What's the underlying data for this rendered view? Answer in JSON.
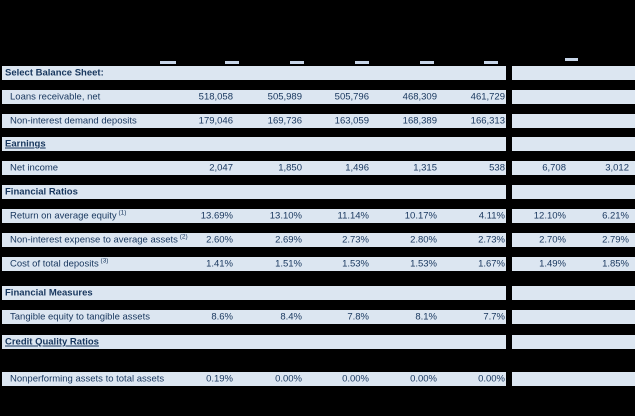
{
  "table": {
    "colors": {
      "background": "#000000",
      "row_fill": "#dce6f1",
      "text": "#17365d"
    },
    "rows": [
      {
        "label": "Select Balance Sheet:",
        "sup": "",
        "type": "section",
        "underline": false,
        "values": [
          "",
          "",
          "",
          "",
          ""
        ],
        "extra": [
          "",
          ""
        ]
      },
      {
        "label": "Loans receivable, net",
        "sup": "",
        "type": "data",
        "underline": false,
        "values": [
          "518,058",
          "505,989",
          "505,796",
          "468,309",
          "461,729"
        ],
        "extra": [
          "",
          ""
        ]
      },
      {
        "label": "Non-interest demand deposits",
        "sup": "",
        "type": "data",
        "underline": false,
        "values": [
          "179,046",
          "169,736",
          "163,059",
          "168,389",
          "166,313"
        ],
        "extra": [
          "",
          ""
        ]
      },
      {
        "label": "Earnings",
        "sup": "",
        "type": "section",
        "underline": true,
        "values": [
          "",
          "",
          "",
          "",
          ""
        ],
        "extra": [
          "",
          ""
        ]
      },
      {
        "label": "Net income",
        "sup": "",
        "type": "data",
        "underline": false,
        "values": [
          "2,047",
          "1,850",
          "1,496",
          "1,315",
          "538"
        ],
        "extra": [
          "6,708",
          "3,012"
        ]
      },
      {
        "label": "Financial Ratios",
        "sup": "",
        "type": "section",
        "underline": false,
        "values": [
          "",
          "",
          "",
          "",
          ""
        ],
        "extra": [
          "",
          ""
        ]
      },
      {
        "label": "Return on average equity",
        "sup": "(1)",
        "type": "data",
        "underline": false,
        "values": [
          "13.69%",
          "13.10%",
          "11.14%",
          "10.17%",
          "4.11%"
        ],
        "extra": [
          "12.10%",
          "6.21%"
        ]
      },
      {
        "label": "Non-interest expense to average assets",
        "sup": "(2)",
        "type": "data",
        "underline": false,
        "values": [
          "2.60%",
          "2.69%",
          "2.73%",
          "2.80%",
          "2.73%"
        ],
        "extra": [
          "2.70%",
          "2.79%"
        ]
      },
      {
        "label": "Cost of total deposits",
        "sup": "(3)",
        "type": "data",
        "underline": false,
        "values": [
          "1.41%",
          "1.51%",
          "1.53%",
          "1.53%",
          "1.67%"
        ],
        "extra": [
          "1.49%",
          "1.85%"
        ]
      },
      {
        "label": "Financial Measures",
        "sup": "",
        "type": "section",
        "underline": false,
        "values": [
          "",
          "",
          "",
          "",
          ""
        ],
        "extra": [
          "",
          ""
        ]
      },
      {
        "label": "Tangible equity to tangible assets",
        "sup": "",
        "type": "data",
        "underline": false,
        "values": [
          "8.6%",
          "8.4%",
          "7.8%",
          "8.1%",
          "7.7%"
        ],
        "extra": [
          "",
          ""
        ]
      },
      {
        "label": "Credit Quality Ratios",
        "sup": "",
        "type": "section",
        "underline": true,
        "values": [
          "",
          "",
          "",
          "",
          ""
        ],
        "extra": [
          "",
          ""
        ]
      },
      {
        "label": "Nonperforming assets to total assets",
        "sup": "",
        "type": "data",
        "underline": false,
        "values": [
          "0.19%",
          "0.00%",
          "0.00%",
          "0.00%",
          "0.00%"
        ],
        "extra": [
          "",
          ""
        ]
      }
    ]
  }
}
